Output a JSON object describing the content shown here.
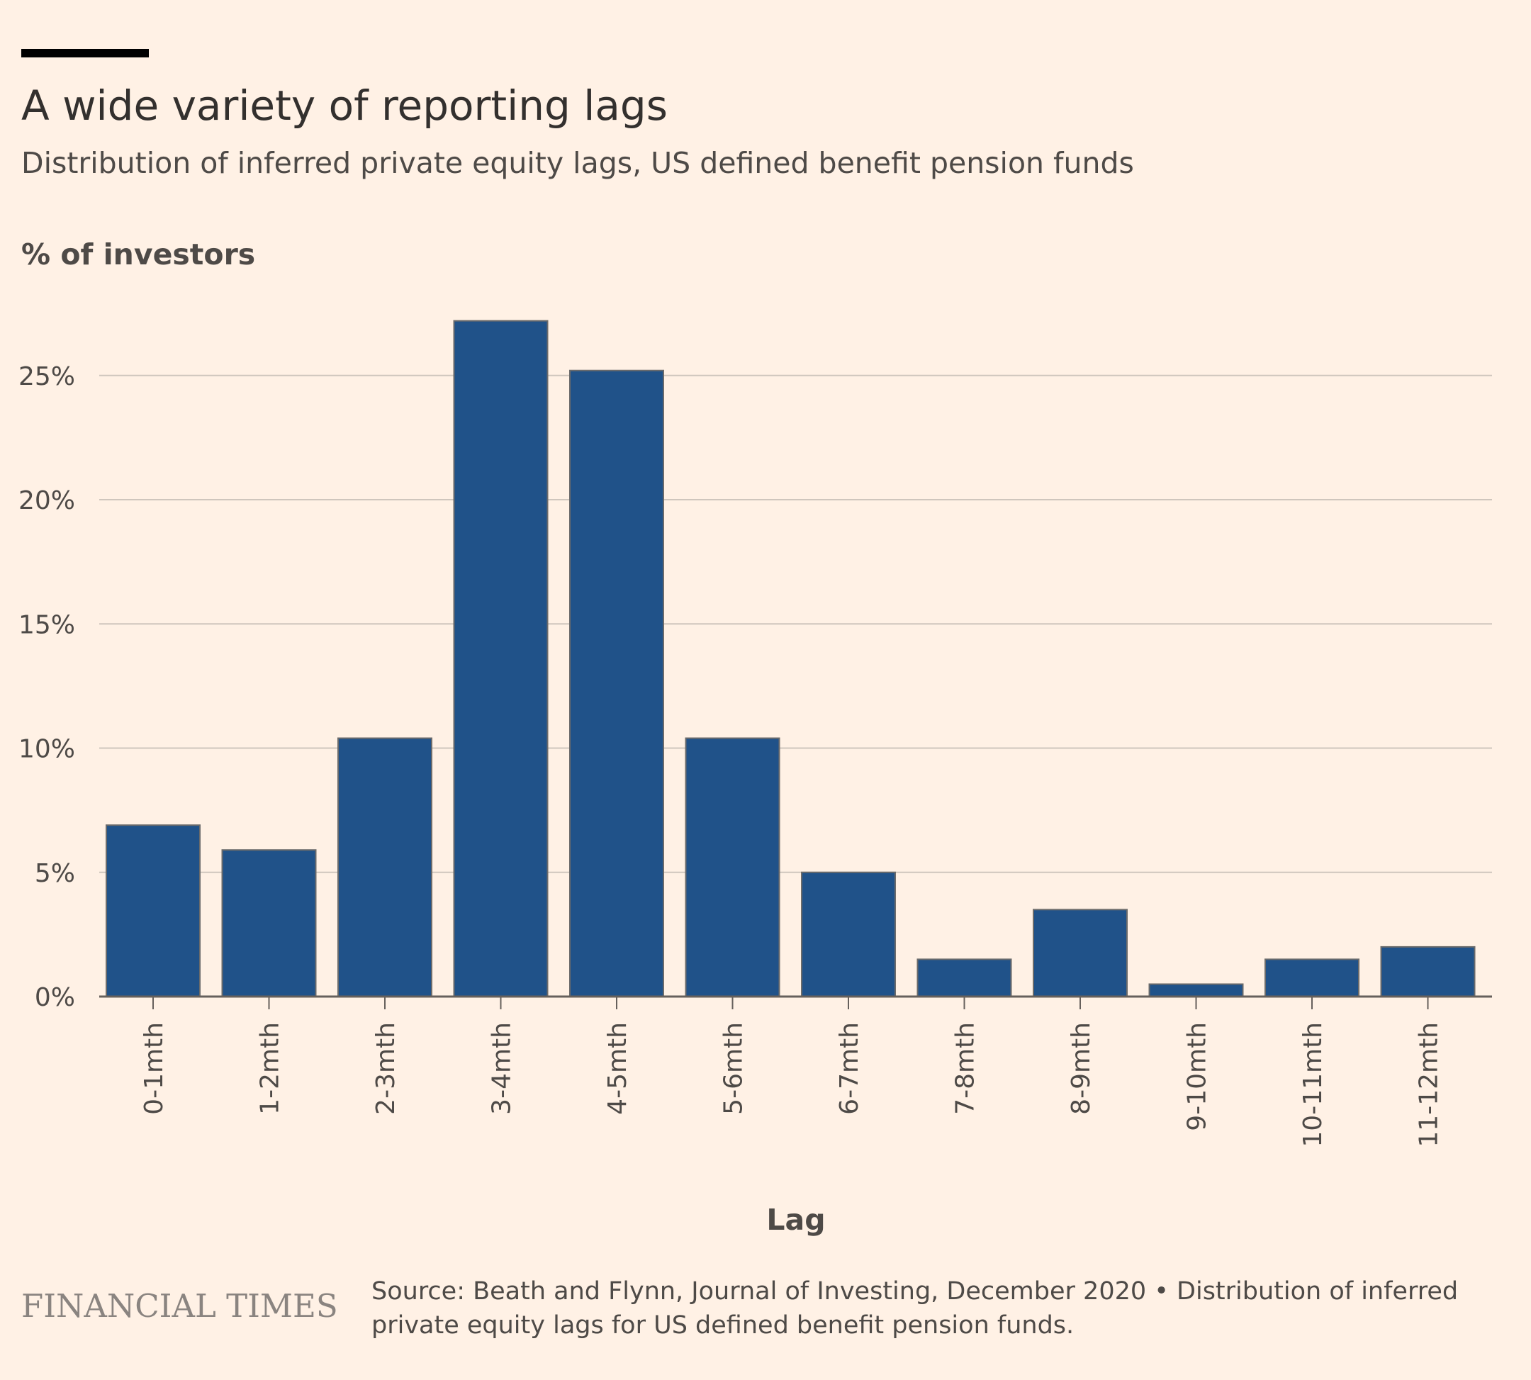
{
  "header": {
    "title": "A wide variety of reporting lags",
    "subtitle": "Distribution of inferred private equity lags, US defined benefit pension funds"
  },
  "chart_data": {
    "type": "bar",
    "ylabel": "% of investors",
    "xlabel": "Lag",
    "categories": [
      "0-1mth",
      "1-2mth",
      "2-3mth",
      "3-4mth",
      "4-5mth",
      "5-6mth",
      "6-7mth",
      "7-8mth",
      "8-9mth",
      "9-10mth",
      "10-11mth",
      "11-12mth"
    ],
    "values": [
      6.9,
      5.9,
      10.4,
      27.2,
      25.2,
      10.4,
      5.0,
      1.5,
      3.5,
      0.5,
      1.5,
      2.0
    ],
    "ylim": [
      0,
      28
    ],
    "yticks": [
      0,
      5,
      10,
      15,
      20,
      25
    ],
    "ytick_labels": [
      "0%",
      "5%",
      "10%",
      "15%",
      "20%",
      "25%"
    ],
    "grid": true,
    "colors": {
      "bar": "#205289",
      "bar_stroke": "#6b6b6b",
      "grid": "#cfc6bd",
      "axis": "#66605c",
      "label": "#4e4a47"
    }
  },
  "footer": {
    "brand": "FINANCIAL TIMES",
    "source": "Source: Beath and Flynn, Journal of Investing, December 2020 • Distribution of inferred private equity lags for US defined benefit pension funds."
  }
}
